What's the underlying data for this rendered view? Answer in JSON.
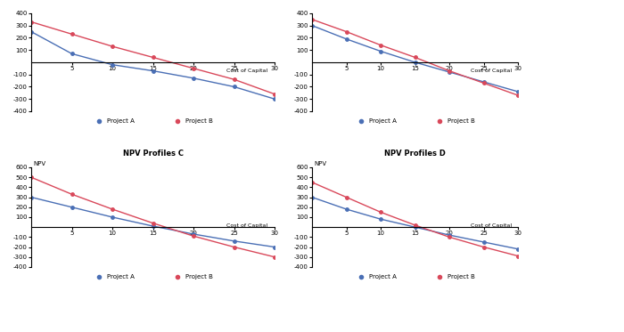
{
  "chart_data": [
    {
      "type": "line",
      "x_label": "Cost of Capital",
      "x": [
        0,
        5,
        10,
        15,
        20,
        25,
        30
      ],
      "xlim": [
        0,
        30
      ],
      "xticks": [
        5,
        10,
        15,
        20,
        25,
        30
      ],
      "ylim": [
        -400,
        400
      ],
      "yticks": [
        -400,
        -300,
        -200,
        -100,
        100,
        200,
        300,
        400
      ],
      "legend": "bottom",
      "series": [
        {
          "name": "Project A",
          "color": "#4a6fb5",
          "marker": "o",
          "values": [
            250,
            70,
            -20,
            -70,
            -130,
            -200,
            -300
          ]
        },
        {
          "name": "Project B",
          "color": "#d9485a",
          "marker": "o",
          "values": [
            330,
            230,
            130,
            40,
            -50,
            -140,
            -260
          ]
        }
      ]
    },
    {
      "type": "line",
      "x_label": "Cost of Capital",
      "x": [
        0,
        5,
        10,
        15,
        20,
        25,
        30
      ],
      "xlim": [
        0,
        30
      ],
      "xticks": [
        5,
        10,
        15,
        20,
        25,
        30
      ],
      "ylim": [
        -400,
        400
      ],
      "yticks": [
        -400,
        -300,
        -200,
        -100,
        100,
        200,
        300,
        400
      ],
      "legend": "bottom",
      "series": [
        {
          "name": "Project A",
          "color": "#4a6fb5",
          "marker": "o",
          "values": [
            300,
            190,
            90,
            0,
            -80,
            -160,
            -240
          ]
        },
        {
          "name": "Project B",
          "color": "#d9485a",
          "marker": "o",
          "values": [
            350,
            250,
            140,
            40,
            -70,
            -170,
            -270
          ]
        }
      ]
    },
    {
      "type": "line",
      "title": "NPV Profiles C",
      "y_label": "NPV",
      "x_label": "Cost of Capital",
      "x": [
        0,
        5,
        10,
        15,
        20,
        25,
        30
      ],
      "xlim": [
        0,
        30
      ],
      "xticks": [
        5,
        10,
        15,
        20,
        25,
        30
      ],
      "ylim": [
        -400,
        600
      ],
      "yticks": [
        -400,
        -300,
        -200,
        -100,
        100,
        200,
        300,
        400,
        500,
        600
      ],
      "legend": "bottom",
      "series": [
        {
          "name": "Project A",
          "color": "#4a6fb5",
          "marker": "o",
          "values": [
            300,
            200,
            100,
            10,
            -70,
            -140,
            -200
          ]
        },
        {
          "name": "Project B",
          "color": "#d9485a",
          "marker": "o",
          "values": [
            500,
            330,
            180,
            40,
            -90,
            -200,
            -300
          ]
        }
      ]
    },
    {
      "type": "line",
      "title": "NPV Profiles D",
      "y_label": "NPV",
      "x_label": "Cost of Capital",
      "x": [
        0,
        5,
        10,
        15,
        20,
        25,
        30
      ],
      "xlim": [
        0,
        30
      ],
      "xticks": [
        5,
        10,
        15,
        20,
        25,
        30
      ],
      "ylim": [
        -400,
        600
      ],
      "yticks": [
        -400,
        -300,
        -200,
        -100,
        100,
        200,
        300,
        400,
        500,
        600
      ],
      "legend": "bottom",
      "series": [
        {
          "name": "Project A",
          "color": "#4a6fb5",
          "marker": "o",
          "values": [
            300,
            180,
            80,
            0,
            -80,
            -150,
            -220
          ]
        },
        {
          "name": "Project B",
          "color": "#d9485a",
          "marker": "o",
          "values": [
            450,
            300,
            150,
            20,
            -100,
            -200,
            -290
          ]
        }
      ]
    }
  ]
}
